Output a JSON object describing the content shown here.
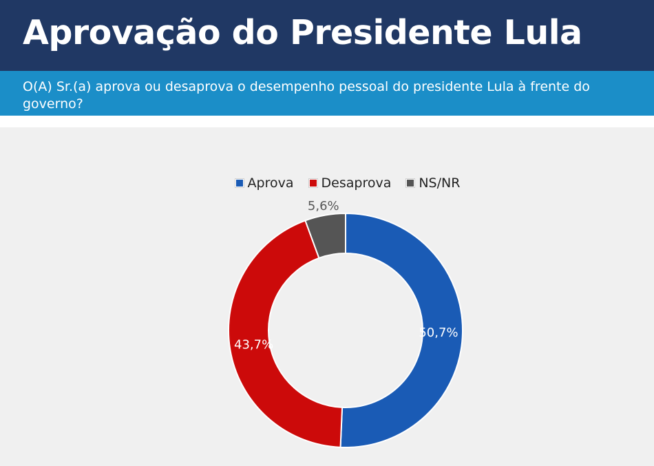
{
  "header": {
    "title": "Aprovação do Presidente Lula",
    "subtitle": "O(A) Sr.(a) aprova ou desaprova o desempenho pessoal do presidente Lula à frente do governo?"
  },
  "colors": {
    "header_bg": "#203864",
    "subtitle_bg": "#1b8ec8",
    "chart_bg": "#f0f0f0"
  },
  "chart_data": {
    "type": "pie",
    "variant": "donut",
    "title": "",
    "legend_position": "top-center",
    "series": [
      {
        "name": "Aprova",
        "value": 50.7,
        "label": "50,7%",
        "color": "#1a5bb5"
      },
      {
        "name": "Desaprova",
        "value": 43.7,
        "label": "43,7%",
        "color": "#cc0a0a"
      },
      {
        "name": "NS/NR",
        "value": 5.6,
        "label": "5,6%",
        "color": "#555555"
      }
    ]
  }
}
